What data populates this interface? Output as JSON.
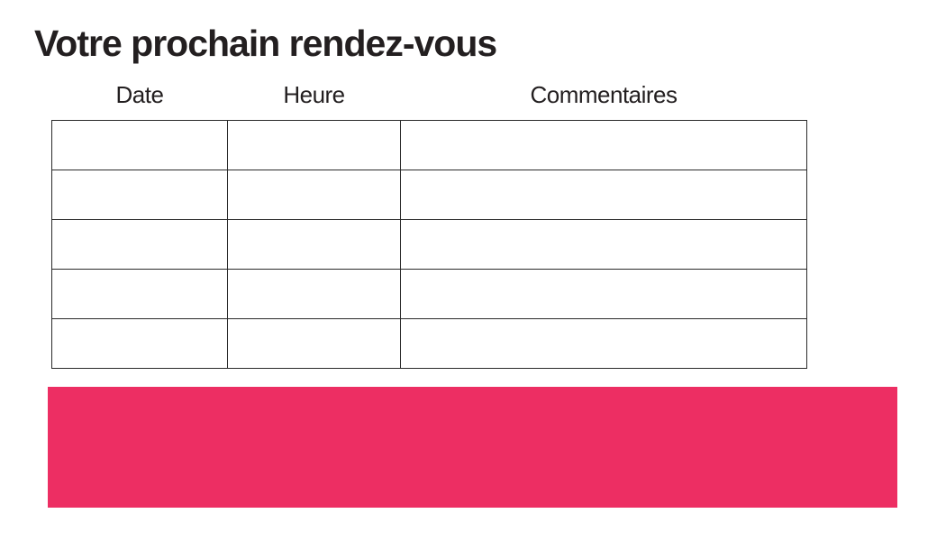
{
  "page": {
    "title": "Votre prochain rendez-vous"
  },
  "table": {
    "headers": [
      "Date",
      "Heure",
      "Commentaires"
    ],
    "rows": [
      [
        "",
        "",
        ""
      ],
      [
        "",
        "",
        ""
      ],
      [
        "",
        "",
        ""
      ],
      [
        "",
        "",
        ""
      ],
      [
        "",
        "",
        ""
      ]
    ]
  },
  "colors": {
    "accent": "#ED2E63",
    "text": "#231F20",
    "border": "#2A2A2A"
  }
}
